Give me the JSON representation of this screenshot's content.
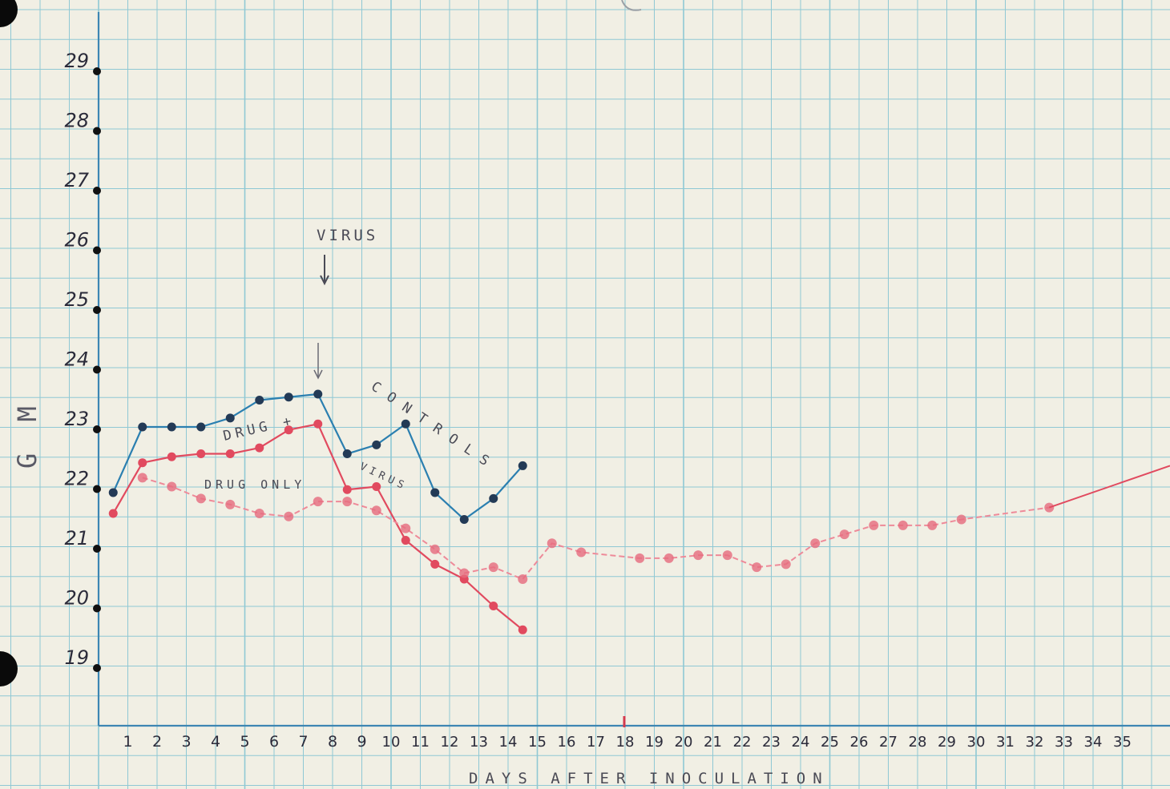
{
  "chart_data": {
    "type": "line",
    "title": "",
    "xlabel": "DAYS AFTER INOCULATION",
    "ylabel": "G M",
    "xlim": [
      0,
      35
    ],
    "ylim": [
      18.3,
      30
    ],
    "x_ticks": [
      1,
      2,
      3,
      4,
      5,
      6,
      7,
      8,
      9,
      10,
      11,
      12,
      13,
      14,
      15,
      16,
      17,
      18,
      19,
      20,
      21,
      22,
      23,
      24,
      25,
      26,
      27,
      28,
      29,
      30,
      31,
      32,
      33,
      34,
      35
    ],
    "y_ticks": [
      19,
      20,
      21,
      22,
      23,
      24,
      25,
      26,
      27,
      28,
      29
    ],
    "grid": true,
    "annotations": {
      "virus_label": "VIRUS",
      "virus_day": 7,
      "controls_label": "CONTROLS",
      "drug_virus_label_1": "DRUG +",
      "drug_virus_label_2": "VIRUS",
      "drug_only_label": "DRUG ONLY"
    },
    "series": [
      {
        "color": "#233a56",
        "line_color": "#2b7fb0",
        "dashed": false,
        "x": [
          0.5,
          1.5,
          2.5,
          3.5,
          4.5,
          5.5,
          6.5,
          7.5,
          8.5,
          9.5,
          10.5,
          11.5,
          12.5,
          13.5,
          14.5
        ],
        "y": [
          21.9,
          23.0,
          23.0,
          23.0,
          23.15,
          23.45,
          23.5,
          23.55,
          22.55,
          22.7,
          23.05,
          21.9,
          21.45,
          21.8,
          22.35
        ]
      },
      {
        "color": "#e14a5f",
        "line_color": "#e14a5f",
        "dashed": false,
        "x": [
          0.5,
          1.5,
          2.5,
          3.5,
          4.5,
          5.5,
          6.5,
          7.5,
          8.5,
          9.5,
          10.5,
          11.5,
          12.5,
          13.5,
          14.5
        ],
        "y": [
          21.55,
          22.4,
          22.5,
          22.55,
          22.55,
          22.65,
          22.95,
          23.05,
          21.95,
          22.0,
          21.1,
          20.7,
          20.45,
          20.0,
          19.6
        ]
      },
      {
        "color": "#e66a7d",
        "line_color": "#ee8a99",
        "dashed": true,
        "x": [
          1.5,
          2.5,
          3.5,
          4.5,
          5.5,
          6.5,
          7.5,
          8.5,
          9.5,
          10.5,
          11.5,
          12.5,
          13.5,
          14.5,
          15.5,
          16.5,
          18.5,
          19.5,
          20.5,
          21.5,
          22.5,
          23.5,
          24.5,
          25.5,
          26.5,
          27.5,
          28.5,
          29.5,
          32.5
        ],
        "y": [
          22.15,
          22.0,
          21.8,
          21.7,
          21.55,
          21.5,
          21.75,
          21.75,
          21.6,
          21.3,
          20.95,
          20.55,
          20.65,
          20.45,
          21.05,
          20.9,
          20.8,
          20.8,
          20.85,
          20.85,
          20.65,
          20.7,
          21.05,
          21.2,
          21.35,
          21.35,
          21.35,
          21.45,
          21.65
        ]
      }
    ]
  },
  "colors": {
    "paper": "#f1efe4",
    "grid": "#8fc8d4",
    "axis": "#3d86b3",
    "pencil": "#4a4a55"
  }
}
